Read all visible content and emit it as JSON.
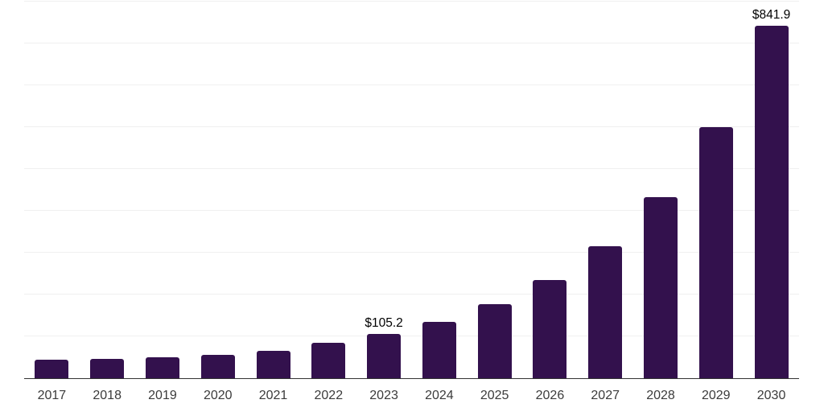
{
  "chart_data": {
    "type": "bar",
    "title": "",
    "xlabel": "",
    "ylabel": "",
    "categories": [
      "2017",
      "2018",
      "2019",
      "2020",
      "2021",
      "2022",
      "2023",
      "2024",
      "2025",
      "2026",
      "2027",
      "2028",
      "2029",
      "2030"
    ],
    "values": [
      45,
      46.5,
      50.5,
      56,
      66,
      84,
      105.2,
      134.5,
      176,
      235,
      316,
      432,
      600,
      841.9
    ],
    "point_labels": [
      "",
      "",
      "",
      "",
      "",
      "",
      "$105.2",
      "",
      "",
      "",
      "",
      "",
      "",
      "$841.9"
    ],
    "ylim": [
      0,
      900
    ],
    "gridline_step": 100,
    "grid": true,
    "legend_position": "none",
    "y_axis_labels_visible": false,
    "colors": {
      "bar": "#33114d",
      "gridline": "#f0f0f0",
      "axis": "#333333",
      "tick_label": "#3b3b3b",
      "value_label": "#000000",
      "background": "#ffffff"
    }
  }
}
